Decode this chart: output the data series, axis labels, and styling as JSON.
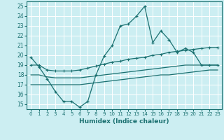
{
  "xlabel": "Humidex (Indice chaleur)",
  "background_color": "#cceef2",
  "grid_color": "#ffffff",
  "line_color": "#1a7070",
  "xlim": [
    -0.5,
    23.5
  ],
  "ylim": [
    14.5,
    25.5
  ],
  "yticks": [
    15,
    16,
    17,
    18,
    19,
    20,
    21,
    22,
    23,
    24,
    25
  ],
  "xticks": [
    0,
    1,
    2,
    3,
    4,
    5,
    6,
    7,
    8,
    9,
    10,
    11,
    12,
    13,
    14,
    15,
    16,
    17,
    18,
    19,
    20,
    21,
    22,
    23
  ],
  "line1_y": [
    19.8,
    18.8,
    17.6,
    16.3,
    15.3,
    15.3,
    14.7,
    15.3,
    18.0,
    19.9,
    21.0,
    23.0,
    23.2,
    24.0,
    25.0,
    21.3,
    22.5,
    21.6,
    20.3,
    20.7,
    20.3,
    19.0,
    19.0,
    19.0
  ],
  "line2_y": [
    19.0,
    19.0,
    18.5,
    18.4,
    18.4,
    18.4,
    18.5,
    18.7,
    18.9,
    19.1,
    19.3,
    19.4,
    19.6,
    19.7,
    19.8,
    20.0,
    20.1,
    20.3,
    20.4,
    20.5,
    20.6,
    20.7,
    20.8,
    20.8
  ],
  "line3_y": [
    18.0,
    18.0,
    17.8,
    17.7,
    17.7,
    17.7,
    17.7,
    17.8,
    17.9,
    18.0,
    18.1,
    18.2,
    18.3,
    18.4,
    18.5,
    18.6,
    18.7,
    18.8,
    18.9,
    19.0,
    19.0,
    19.0,
    19.0,
    19.0
  ],
  "line4_y": [
    17.0,
    17.0,
    17.0,
    17.0,
    17.0,
    17.0,
    17.0,
    17.1,
    17.2,
    17.3,
    17.4,
    17.5,
    17.6,
    17.7,
    17.8,
    17.9,
    18.0,
    18.0,
    18.1,
    18.2,
    18.3,
    18.4,
    18.5,
    18.5
  ]
}
